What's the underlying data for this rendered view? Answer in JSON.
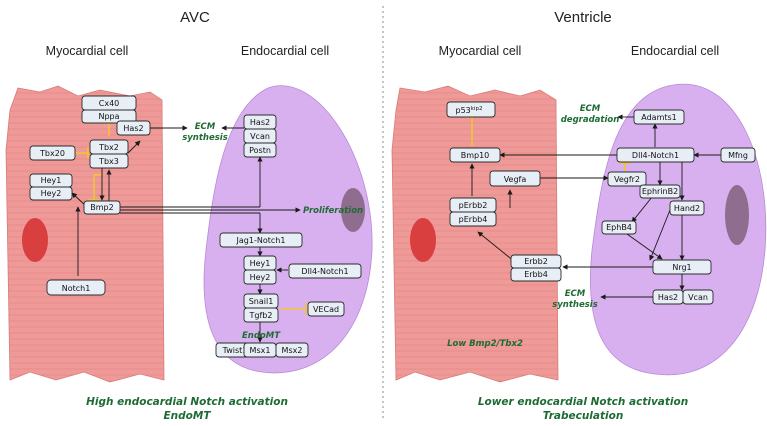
{
  "panels": {
    "avc": {
      "title": "AVC",
      "myocardial_label": "Myocardial cell",
      "endocardial_label": "Endocardial cell"
    },
    "ventricle": {
      "title": "Ventricle",
      "myocardial_label": "Myocardial cell",
      "endocardial_label": "Endocardial cell"
    }
  },
  "avc_nodes": {
    "cx40": "Cx40",
    "nppa": "Nppa",
    "has2": "Has2",
    "tbx20": "Tbx20",
    "tbx2": "Tbx2",
    "tbx3": "Tbx3",
    "hey1": "Hey1",
    "hey2": "Hey2",
    "bmp2": "Bmp2",
    "notch1": "Notch1",
    "has2_endo": "Has2",
    "vcan": "Vcan",
    "postn": "Postn",
    "jag1_notch1": "Jag1-Notch1",
    "hey1_endo": "Hey1",
    "hey2_endo": "Hey2",
    "dll4_notch1": "Dll4-Notch1",
    "snail1": "Snail1",
    "tgfb2": "Tgfb2",
    "vecad": "VECad",
    "twist1": "Twist1",
    "msx1": "Msx1",
    "msx2": "Msx2"
  },
  "avc_labels": {
    "ecm_synthesis_1": "ECM",
    "ecm_synthesis_2": "synthesis",
    "proliferation": "Proliferation",
    "endomt": "EndoMT"
  },
  "ventricle_nodes": {
    "p53_base": "p53",
    "p53_sup": "kip2",
    "bmp10": "Bmp10",
    "vegfa": "Vegfa",
    "perbb2": "pErbb2",
    "perbb4": "pErbb4",
    "adamts1": "Adamts1",
    "dll4_notch1": "Dll4-Notch1",
    "mfng": "Mfng",
    "vegfr2": "Vegfr2",
    "ephrinb2": "EphrinB2",
    "hand2": "Hand2",
    "ephb4": "EphB4",
    "nrg1": "Nrg1",
    "erbb2": "Erbb2",
    "erbb4": "Erbb4",
    "has2": "Has2",
    "vcan": "Vcan"
  },
  "ventricle_labels": {
    "ecm_degradation_1": "ECM",
    "ecm_degradation_2": "degradation",
    "ecm_synthesis_1": "ECM",
    "ecm_synthesis_2": "synthesis",
    "low_bmp2_tbx2": "Low Bmp2/Tbx2"
  },
  "captions": {
    "avc_1": "High endocardial Notch activation",
    "avc_2": "EndoMT",
    "ventricle_1": "Lower endocardial Notch activation",
    "ventricle_2": "Trabeculation"
  },
  "colors": {
    "myocardium": "#ee9a98",
    "myocardial_nucleus": "#d93f3f",
    "endocardium": "#d8b0ef",
    "endocardial_nucleus": "#8f6d8f",
    "node_fill": "#e8eef6",
    "inhibition": "#f2c531",
    "label_green": "#1e6b34"
  }
}
